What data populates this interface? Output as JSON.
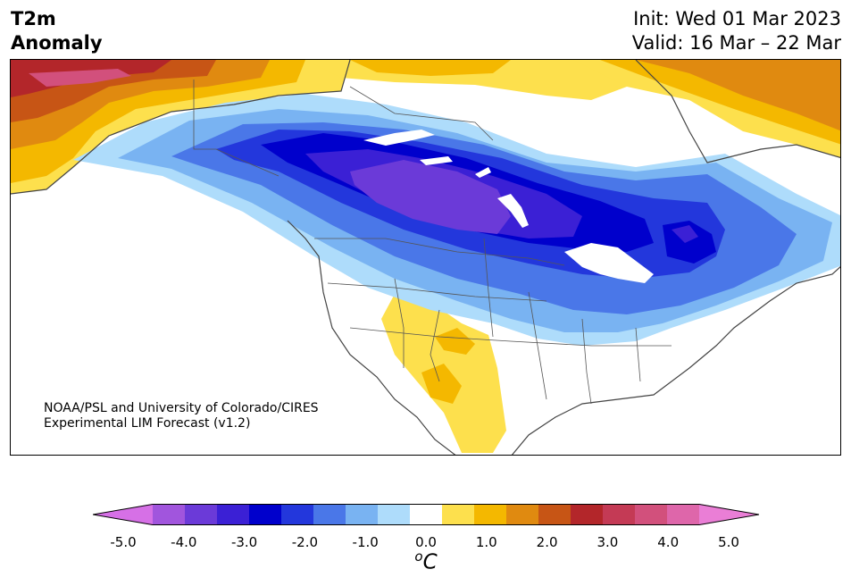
{
  "header": {
    "title_line1": "T2m",
    "title_line2": "Anomaly",
    "init": "Init: Wed 01 Mar 2023",
    "valid": "Valid: 16 Mar – 22 Mar"
  },
  "map": {
    "region": "North America",
    "variable": "2-meter temperature anomaly",
    "credit_line1": "NOAA/PSL and University of Colorado/CIRES",
    "credit_line2": "Experimental LIM Forecast (v1.2)"
  },
  "colorbar": {
    "units_base": "C",
    "units_sup": "o",
    "tick_labels": [
      "-5.0",
      "-4.0",
      "-3.0",
      "-2.0",
      "-1.0",
      "0.0",
      "1.0",
      "2.0",
      "3.0",
      "4.0",
      "5.0"
    ],
    "bins": [
      {
        "range": "-5.0 to -4.5",
        "color": "#d670e6"
      },
      {
        "range": "-4.5 to -4.0",
        "color": "#a155dd"
      },
      {
        "range": "-4.0 to -3.5",
        "color": "#6b3ad8"
      },
      {
        "range": "-3.5 to -3.0",
        "color": "#3b20d5"
      },
      {
        "range": "-3.0 to -2.5",
        "color": "#0000cc"
      },
      {
        "range": "-2.5 to -2.0",
        "color": "#2337dc"
      },
      {
        "range": "-2.0 to -1.5",
        "color": "#4a77e8"
      },
      {
        "range": "-1.5 to -1.0",
        "color": "#79b3f2"
      },
      {
        "range": "-1.0 to -0.5",
        "color": "#aedcfb"
      },
      {
        "range": "-0.5 to 0.5",
        "color": "#ffffff"
      },
      {
        "range": "0.5 to 1.0",
        "color": "#fde04d"
      },
      {
        "range": "1.0 to 1.5",
        "color": "#f4b800"
      },
      {
        "range": "1.5 to 2.0",
        "color": "#e08a10"
      },
      {
        "range": "2.0 to 2.5",
        "color": "#c75515"
      },
      {
        "range": "2.5 to 3.0",
        "color": "#b3262a"
      },
      {
        "range": "3.0 to 3.5",
        "color": "#c43a55"
      },
      {
        "range": "3.5 to 4.0",
        "color": "#d2507c"
      },
      {
        "range": "4.0 to 4.5",
        "color": "#de66aa"
      },
      {
        "range": "4.5 to 5.0",
        "color": "#ea7ed6"
      }
    ]
  }
}
